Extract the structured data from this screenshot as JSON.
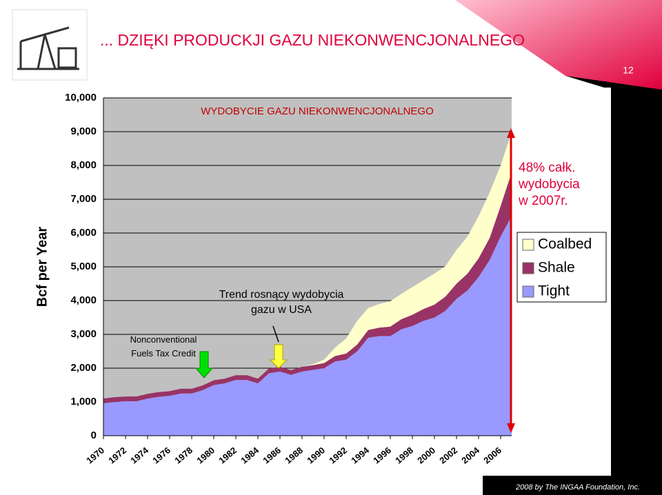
{
  "slide": {
    "title": "... DZIĘKI PRODUCKJI GAZU NIEKONWENCJONALNEGO",
    "page": "12",
    "footer": "2008 by The INGAA Foundation, Inc."
  },
  "chart_data": {
    "type": "area",
    "title": "WYDOBYCIE GAZU NIEKONWENCJONALNEGO",
    "y_label": "Bcf per Year",
    "annotations": [
      "48% całk. wydobycia w 2007r.",
      "Trend rosnący wydobycia gazu w USA",
      "Nonconventional Fuels Tax Credit"
    ],
    "stacked": true,
    "legend": "right",
    "x": [
      1970,
      1971,
      1972,
      1973,
      1974,
      1975,
      1976,
      1977,
      1978,
      1979,
      1980,
      1981,
      1982,
      1983,
      1984,
      1985,
      1986,
      1987,
      1988,
      1989,
      1990,
      1991,
      1992,
      1993,
      1994,
      1995,
      1996,
      1997,
      1998,
      1999,
      2000,
      2001,
      2002,
      2003,
      2004,
      2005,
      2006,
      2007
    ],
    "series": [
      {
        "name": "Tight",
        "color": "#9999ff",
        "values": [
          960,
          1000,
          1020,
          1020,
          1100,
          1150,
          1180,
          1250,
          1250,
          1350,
          1500,
          1550,
          1650,
          1650,
          1550,
          1850,
          1900,
          1800,
          1900,
          1950,
          2000,
          2200,
          2250,
          2500,
          2900,
          2950,
          2950,
          3150,
          3250,
          3400,
          3500,
          3700,
          4050,
          4300,
          4700,
          5200,
          5900,
          6500
        ]
      },
      {
        "name": "Shale",
        "color": "#993366",
        "values": [
          140,
          140,
          140,
          140,
          140,
          140,
          140,
          140,
          140,
          140,
          140,
          140,
          140,
          140,
          140,
          140,
          140,
          140,
          140,
          140,
          150,
          160,
          180,
          200,
          230,
          250,
          280,
          300,
          330,
          350,
          380,
          420,
          450,
          500,
          550,
          650,
          900,
          1300
        ]
      },
      {
        "name": "Coalbed",
        "color": "#ffffcc",
        "values": [
          0,
          0,
          0,
          0,
          0,
          0,
          0,
          0,
          0,
          0,
          0,
          0,
          0,
          0,
          0,
          0,
          0,
          0,
          0,
          30,
          100,
          250,
          450,
          700,
          650,
          700,
          750,
          750,
          820,
          850,
          920,
          900,
          1000,
          1100,
          1250,
          1350,
          1200,
          1200
        ]
      }
    ],
    "xlim": [
      1970,
      2007
    ],
    "xticks": [
      1970,
      1972,
      1974,
      1976,
      1978,
      1980,
      1982,
      1984,
      1986,
      1988,
      1990,
      1992,
      1994,
      1996,
      1998,
      2000,
      2002,
      2004,
      2006
    ],
    "ylim": [
      0,
      10000
    ],
    "yticks": [
      0,
      {
        "value": 1000,
        "label": "1,000"
      },
      {
        "value": 2000,
        "label": "2,000"
      },
      {
        "value": 3000,
        "label": "3,000"
      },
      {
        "value": 4000,
        "label": "4,000"
      },
      {
        "value": 5000,
        "label": "5,000"
      },
      {
        "value": 6000,
        "label": "6,000"
      },
      {
        "value": 7000,
        "label": "7,000"
      },
      {
        "value": 8000,
        "label": "8,000"
      },
      {
        "value": 9000,
        "label": "9,000"
      },
      {
        "value": 10000,
        "label": "10,000"
      }
    ],
    "grid": true
  }
}
